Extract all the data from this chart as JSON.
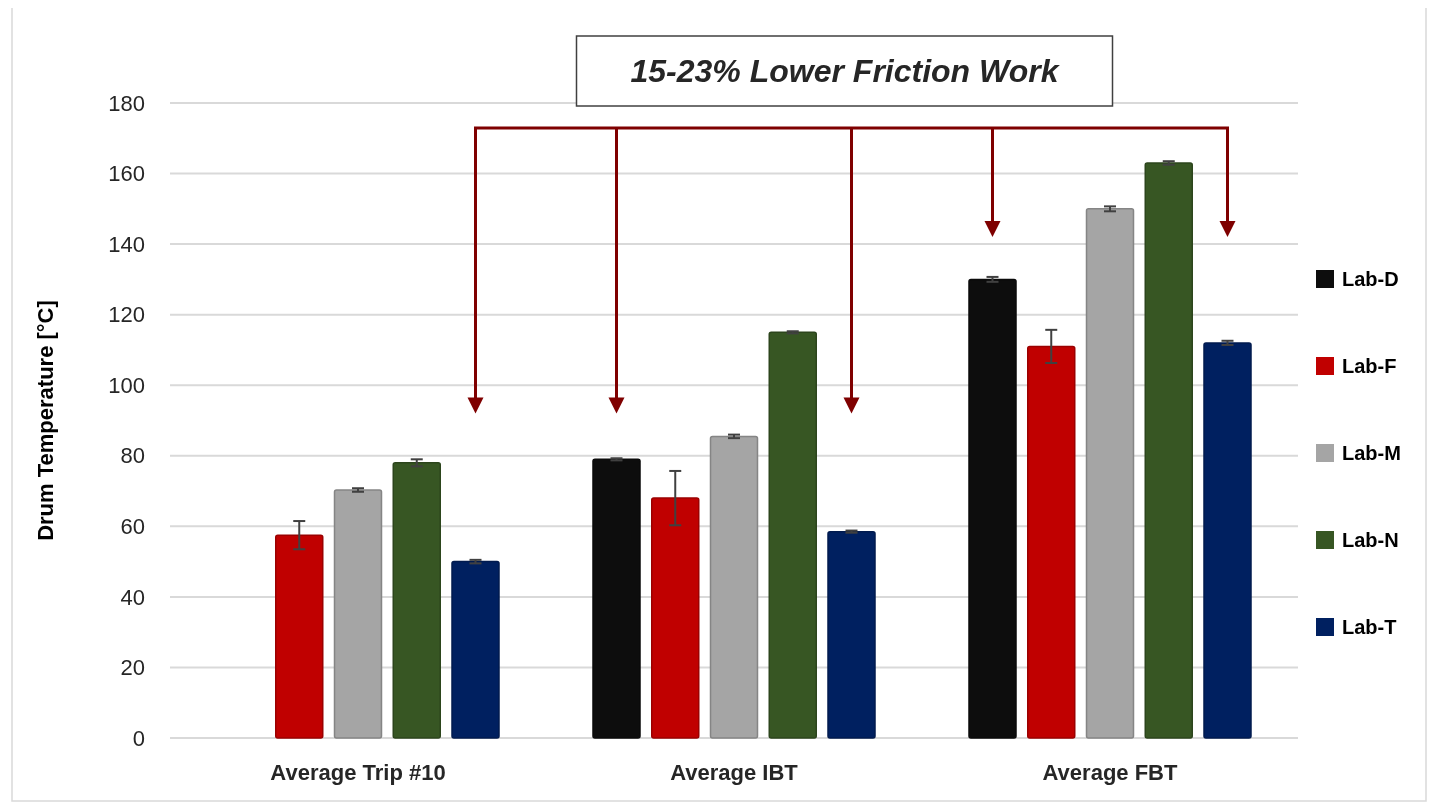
{
  "chart_data": {
    "type": "bar",
    "ylabel": "Drum Temperature [°C]",
    "categories": [
      "Average Trip #10",
      "Average IBT",
      "Average FBT"
    ],
    "series": [
      {
        "name": "Lab-D",
        "color": "#0d0d0d",
        "values": [
          null,
          79,
          130
        ],
        "errors": [
          null,
          0.3,
          0.7
        ]
      },
      {
        "name": "Lab-F",
        "color": "#c00000",
        "values": [
          57.5,
          68,
          111
        ],
        "errors": [
          4,
          7.7,
          4.7
        ]
      },
      {
        "name": "Lab-M",
        "color": "#a5a5a5",
        "values": [
          70.3,
          85.5,
          150
        ],
        "errors": [
          0.5,
          0.5,
          0.7
        ]
      },
      {
        "name": "Lab-N",
        "color": "#375623",
        "values": [
          78,
          115,
          163
        ],
        "errors": [
          1,
          0.3,
          0.5
        ]
      },
      {
        "name": "Lab-T",
        "color": "#002060",
        "values": [
          50,
          58.5,
          112
        ],
        "errors": [
          0.5,
          0.3,
          0.6
        ]
      }
    ],
    "ylim": [
      0,
      180
    ],
    "yticks": [
      0,
      20,
      40,
      60,
      80,
      100,
      120,
      140,
      160,
      180
    ],
    "grid": "y",
    "legend": "right",
    "annotations": [
      "15-23% Lower Friction Work"
    ]
  }
}
